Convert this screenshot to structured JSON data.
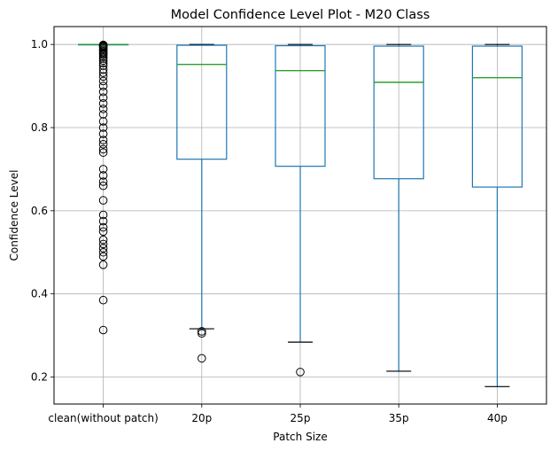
{
  "chart_data": {
    "type": "box",
    "title": "Model Confidence Level Plot - M20 Class",
    "xlabel": "Patch Size",
    "ylabel": "Confidence Level",
    "ylim": [
      0.135,
      1.043
    ],
    "yticks": [
      0.2,
      0.4,
      0.6,
      0.8,
      1.0
    ],
    "ytick_labels": [
      "0.2",
      "0.4",
      "0.6",
      "0.8",
      "1.0"
    ],
    "grid": true,
    "categories": [
      "clean(without patch)",
      "20p",
      "25p",
      "35p",
      "40p"
    ],
    "boxes": [
      {
        "name": "clean(without patch)",
        "q1": 1.0,
        "median": 1.0,
        "q3": 1.0,
        "whisker_low": 1.0,
        "whisker_high": 1.0,
        "outliers": [
          0.999,
          0.998,
          0.997,
          0.996,
          0.995,
          0.993,
          0.99,
          0.987,
          0.984,
          0.981,
          0.978,
          0.975,
          0.97,
          0.966,
          0.961,
          0.955,
          0.949,
          0.94,
          0.932,
          0.923,
          0.912,
          0.9,
          0.886,
          0.872,
          0.858,
          0.845,
          0.832,
          0.815,
          0.8,
          0.785,
          0.77,
          0.76,
          0.748,
          0.74,
          0.7,
          0.685,
          0.67,
          0.66,
          0.625,
          0.59,
          0.575,
          0.56,
          0.55,
          0.53,
          0.52,
          0.51,
          0.5,
          0.49,
          0.47,
          0.385,
          0.313
        ]
      },
      {
        "name": "20p",
        "q1": 0.724,
        "median": 0.952,
        "q3": 0.998,
        "whisker_low": 0.316,
        "whisker_high": 1.0,
        "outliers": [
          0.31,
          0.305,
          0.245
        ]
      },
      {
        "name": "25p",
        "q1": 0.707,
        "median": 0.937,
        "q3": 0.997,
        "whisker_low": 0.284,
        "whisker_high": 1.0,
        "outliers": [
          0.212
        ]
      },
      {
        "name": "35p",
        "q1": 0.677,
        "median": 0.909,
        "q3": 0.996,
        "whisker_low": 0.214,
        "whisker_high": 1.0,
        "outliers": []
      },
      {
        "name": "40p",
        "q1": 0.657,
        "median": 0.92,
        "q3": 0.996,
        "whisker_low": 0.177,
        "whisker_high": 1.0,
        "outliers": []
      }
    ],
    "colors": {
      "box": "#1f77b4",
      "median": "#2ca02c",
      "whisker_cap": "#000000",
      "outlier": "#000000",
      "grid": "#b0b0b0"
    }
  }
}
